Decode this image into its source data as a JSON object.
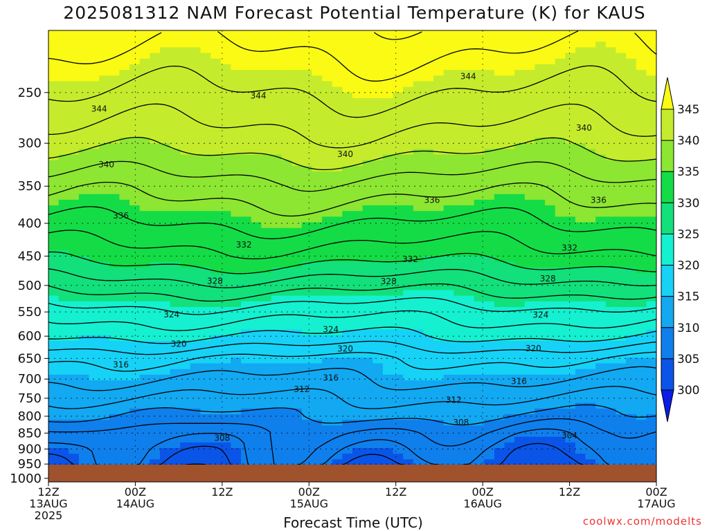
{
  "chart_data": {
    "type": "heatmap",
    "title": "2025081312 NAM Forecast Potential Temperature (K) for KAUS",
    "xlabel": "Forecast Time (UTC)",
    "credit": "coolwx.com/modelts",
    "y_ticks": [
      250,
      300,
      350,
      400,
      450,
      500,
      550,
      600,
      650,
      700,
      750,
      800,
      850,
      900,
      950,
      1000
    ],
    "y_range": [
      200,
      1013
    ],
    "x_range_hours": [
      0,
      84
    ],
    "x_ticks": [
      {
        "hour": 0,
        "lines": [
          "12Z",
          "13AUG",
          "2025"
        ]
      },
      {
        "hour": 12,
        "lines": [
          "00Z",
          "14AUG"
        ]
      },
      {
        "hour": 24,
        "lines": [
          "12Z"
        ]
      },
      {
        "hour": 36,
        "lines": [
          "00Z",
          "15AUG"
        ]
      },
      {
        "hour": 48,
        "lines": [
          "12Z"
        ]
      },
      {
        "hour": 60,
        "lines": [
          "00Z",
          "16AUG"
        ]
      },
      {
        "hour": 72,
        "lines": [
          "12Z"
        ]
      },
      {
        "hour": 84,
        "lines": [
          "00Z",
          "17AUG"
        ]
      }
    ],
    "colorbar": {
      "levels": [
        300,
        305,
        310,
        315,
        320,
        325,
        330,
        335,
        340,
        345
      ],
      "colors": [
        "#0a1ee6",
        "#0a55e8",
        "#0f7fec",
        "#12a8f2",
        "#16d2f6",
        "#14f0d0",
        "#12e07a",
        "#14dc46",
        "#8ce632",
        "#c4ec2c",
        "#fafa14"
      ]
    },
    "profile": [
      {
        "p": 1000,
        "theta": 301
      },
      {
        "p": 950,
        "theta": 305
      },
      {
        "p": 900,
        "theta": 306
      },
      {
        "p": 850,
        "theta": 307.5
      },
      {
        "p": 800,
        "theta": 310
      },
      {
        "p": 750,
        "theta": 312
      },
      {
        "p": 700,
        "theta": 314
      },
      {
        "p": 650,
        "theta": 316
      },
      {
        "p": 600,
        "theta": 320
      },
      {
        "p": 550,
        "theta": 323
      },
      {
        "p": 500,
        "theta": 327
      },
      {
        "p": 450,
        "theta": 331
      },
      {
        "p": 400,
        "theta": 334
      },
      {
        "p": 350,
        "theta": 337
      },
      {
        "p": 300,
        "theta": 341
      },
      {
        "p": 250,
        "theta": 344
      },
      {
        "p": 200,
        "theta": 347
      }
    ],
    "contour_labels": [
      {
        "text": "344",
        "hour": 7,
        "p": 265
      },
      {
        "text": "344",
        "hour": 29,
        "p": 253
      },
      {
        "text": "344",
        "hour": 58,
        "p": 236
      },
      {
        "text": "340",
        "hour": 8,
        "p": 324
      },
      {
        "text": "340",
        "hour": 41,
        "p": 312
      },
      {
        "text": "340",
        "hour": 74,
        "p": 284
      },
      {
        "text": "336",
        "hour": 10,
        "p": 389
      },
      {
        "text": "336",
        "hour": 53,
        "p": 368
      },
      {
        "text": "336",
        "hour": 76,
        "p": 368
      },
      {
        "text": "332",
        "hour": 27,
        "p": 432
      },
      {
        "text": "332",
        "hour": 50,
        "p": 455
      },
      {
        "text": "332",
        "hour": 72,
        "p": 437
      },
      {
        "text": "328",
        "hour": 23,
        "p": 492
      },
      {
        "text": "328",
        "hour": 47,
        "p": 493
      },
      {
        "text": "328",
        "hour": 69,
        "p": 488
      },
      {
        "text": "324",
        "hour": 17,
        "p": 555
      },
      {
        "text": "324",
        "hour": 39,
        "p": 586
      },
      {
        "text": "324",
        "hour": 68,
        "p": 556
      },
      {
        "text": "320",
        "hour": 18,
        "p": 617
      },
      {
        "text": "320",
        "hour": 41,
        "p": 628
      },
      {
        "text": "320",
        "hour": 67,
        "p": 627
      },
      {
        "text": "316",
        "hour": 10,
        "p": 665
      },
      {
        "text": "316",
        "hour": 39,
        "p": 697
      },
      {
        "text": "316",
        "hour": 65,
        "p": 706
      },
      {
        "text": "312",
        "hour": 35,
        "p": 726
      },
      {
        "text": "312",
        "hour": 56,
        "p": 755
      },
      {
        "text": "308",
        "hour": 24,
        "p": 865
      },
      {
        "text": "308",
        "hour": 57,
        "p": 818
      },
      {
        "text": "304",
        "hour": 72,
        "p": 858
      }
    ]
  }
}
